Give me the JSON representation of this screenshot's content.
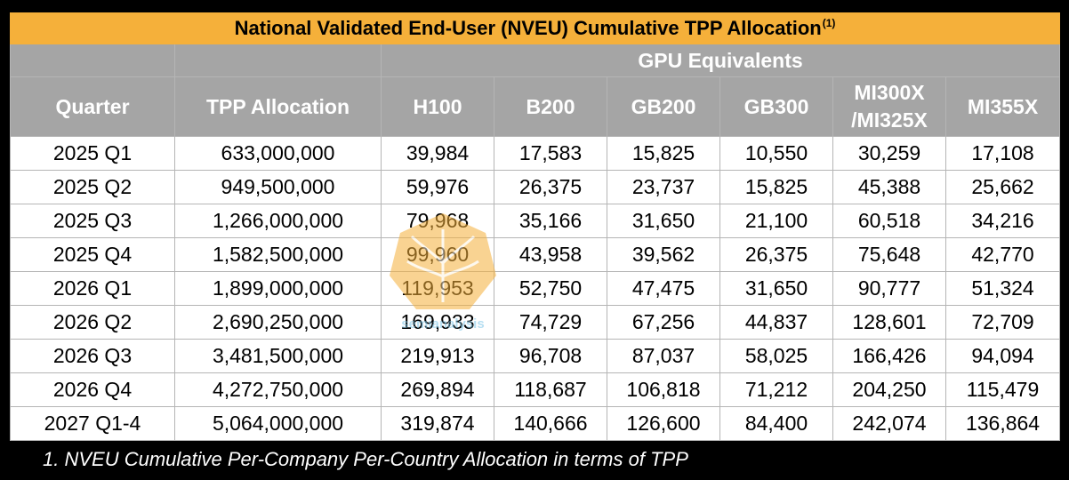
{
  "table": {
    "title": "National Validated End-User (NVEU) Cumulative TPP Allocation",
    "title_note_marker": "(1)",
    "group_header": "GPU Equivalents",
    "columns": {
      "quarter": "Quarter",
      "tpp": "TPP Allocation",
      "h100": "H100",
      "b200": "B200",
      "gb200": "GB200",
      "gb300": "GB300",
      "mi300_line1": "MI300X",
      "mi300_line2": "/MI325X",
      "mi355": "MI355X"
    },
    "rows": [
      [
        "2025 Q1",
        "633,000,000",
        "39,984",
        "17,583",
        "15,825",
        "10,550",
        "30,259",
        "17,108"
      ],
      [
        "2025 Q2",
        "949,500,000",
        "59,976",
        "26,375",
        "23,737",
        "15,825",
        "45,388",
        "25,662"
      ],
      [
        "2025 Q3",
        "1,266,000,000",
        "79,968",
        "35,166",
        "31,650",
        "21,100",
        "60,518",
        "34,216"
      ],
      [
        "2025 Q4",
        "1,582,500,000",
        "99,960",
        "43,958",
        "39,562",
        "26,375",
        "75,648",
        "42,770"
      ],
      [
        "2026 Q1",
        "1,899,000,000",
        "119,953",
        "52,750",
        "47,475",
        "31,650",
        "90,777",
        "51,324"
      ],
      [
        "2026 Q2",
        "2,690,250,000",
        "169,933",
        "74,729",
        "67,256",
        "44,837",
        "128,601",
        "72,709"
      ],
      [
        "2026 Q3",
        "3,481,500,000",
        "219,913",
        "96,708",
        "87,037",
        "58,025",
        "166,426",
        "94,094"
      ],
      [
        "2026 Q4",
        "4,272,750,000",
        "269,894",
        "118,687",
        "106,818",
        "71,212",
        "204,250",
        "115,479"
      ],
      [
        "2027 Q1-4",
        "5,064,000,000",
        "319,874",
        "140,666",
        "126,600",
        "84,400",
        "242,074",
        "136,864"
      ]
    ],
    "footnote": "1. NVEU Cumulative Per-Company Per-Country Allocation in terms of TPP",
    "watermark_text": "semianalysis"
  },
  "chart_data": {
    "type": "table",
    "title": "National Validated End-User (NVEU) Cumulative TPP Allocation",
    "categories": [
      "2025 Q1",
      "2025 Q2",
      "2025 Q3",
      "2025 Q4",
      "2026 Q1",
      "2026 Q2",
      "2026 Q3",
      "2026 Q4",
      "2027 Q1-4"
    ],
    "series": [
      {
        "name": "TPP Allocation",
        "values": [
          633000000,
          949500000,
          1266000000,
          1582500000,
          1899000000,
          2690250000,
          3481500000,
          4272750000,
          5064000000
        ]
      },
      {
        "name": "H100",
        "values": [
          39984,
          59976,
          79968,
          99960,
          119953,
          169933,
          219913,
          269894,
          319874
        ]
      },
      {
        "name": "B200",
        "values": [
          17583,
          26375,
          35166,
          43958,
          52750,
          74729,
          96708,
          118687,
          140666
        ]
      },
      {
        "name": "GB200",
        "values": [
          15825,
          23737,
          31650,
          39562,
          47475,
          67256,
          87037,
          106818,
          126600
        ]
      },
      {
        "name": "GB300",
        "values": [
          10550,
          15825,
          21100,
          26375,
          31650,
          44837,
          58025,
          71212,
          84400
        ]
      },
      {
        "name": "MI300X/MI325X",
        "values": [
          30259,
          45388,
          60518,
          75648,
          90777,
          128601,
          166426,
          204250,
          242074
        ]
      },
      {
        "name": "MI355X",
        "values": [
          17108,
          25662,
          34216,
          42770,
          51324,
          72709,
          94094,
          115479,
          136864
        ]
      }
    ]
  },
  "colors": {
    "title_bg": "#f5b03a",
    "header_bg": "#a5a5a5",
    "cell_bg": "#ffffff",
    "page_bg": "#000000",
    "watermark": "#f5b03a"
  }
}
